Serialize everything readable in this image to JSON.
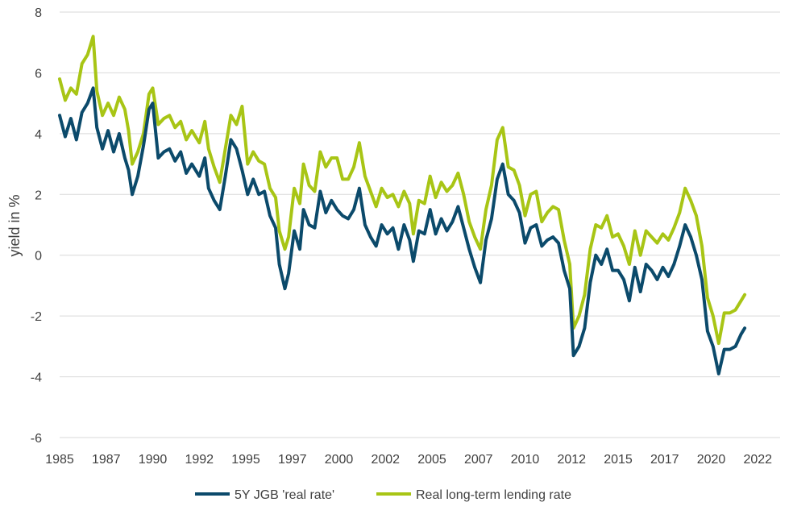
{
  "chart_data": {
    "type": "line",
    "title": "",
    "xlabel": "",
    "ylabel": "yield in %",
    "xlim": [
      1985.0,
      2023.7
    ],
    "ylim": [
      -6,
      8
    ],
    "y_ticks": [
      -6,
      -4,
      -2,
      0,
      2,
      4,
      6,
      8
    ],
    "x_tick_labels": [
      {
        "value": 1985.0,
        "label": "1985"
      },
      {
        "value": 1987.5,
        "label": "1987"
      },
      {
        "value": 1990.0,
        "label": "1990"
      },
      {
        "value": 1992.5,
        "label": "1992"
      },
      {
        "value": 1995.0,
        "label": "1995"
      },
      {
        "value": 1997.5,
        "label": "1997"
      },
      {
        "value": 2000.0,
        "label": "2000"
      },
      {
        "value": 2002.5,
        "label": "2002"
      },
      {
        "value": 2005.0,
        "label": "2005"
      },
      {
        "value": 2007.5,
        "label": "2007"
      },
      {
        "value": 2010.0,
        "label": "2010"
      },
      {
        "value": 2012.5,
        "label": "2012"
      },
      {
        "value": 2015.0,
        "label": "2015"
      },
      {
        "value": 2017.5,
        "label": "2017"
      },
      {
        "value": 2020.0,
        "label": "2020"
      },
      {
        "value": 2022.5,
        "label": "2022"
      }
    ],
    "grid": "horizontal",
    "legend_position": "bottom",
    "series": [
      {
        "name": "5Y JGB 'real rate'",
        "color": "#0b4a6b",
        "points": [
          [
            1985.0,
            4.6
          ],
          [
            1985.3,
            3.9
          ],
          [
            1985.6,
            4.5
          ],
          [
            1985.9,
            3.8
          ],
          [
            1986.2,
            4.7
          ],
          [
            1986.5,
            5.0
          ],
          [
            1986.8,
            5.5
          ],
          [
            1987.0,
            4.2
          ],
          [
            1987.3,
            3.5
          ],
          [
            1987.6,
            4.1
          ],
          [
            1987.9,
            3.4
          ],
          [
            1988.2,
            4.0
          ],
          [
            1988.5,
            3.2
          ],
          [
            1988.7,
            2.8
          ],
          [
            1988.9,
            2.0
          ],
          [
            1989.2,
            2.6
          ],
          [
            1989.5,
            3.6
          ],
          [
            1989.8,
            4.8
          ],
          [
            1990.0,
            5.0
          ],
          [
            1990.3,
            3.2
          ],
          [
            1990.6,
            3.4
          ],
          [
            1990.9,
            3.5
          ],
          [
            1991.2,
            3.1
          ],
          [
            1991.5,
            3.4
          ],
          [
            1991.8,
            2.7
          ],
          [
            1992.1,
            3.0
          ],
          [
            1992.5,
            2.6
          ],
          [
            1992.8,
            3.2
          ],
          [
            1993.0,
            2.2
          ],
          [
            1993.3,
            1.8
          ],
          [
            1993.6,
            1.5
          ],
          [
            1993.9,
            2.6
          ],
          [
            1994.2,
            3.8
          ],
          [
            1994.5,
            3.5
          ],
          [
            1994.8,
            2.8
          ],
          [
            1995.1,
            2.0
          ],
          [
            1995.4,
            2.5
          ],
          [
            1995.7,
            2.0
          ],
          [
            1996.0,
            2.1
          ],
          [
            1996.3,
            1.3
          ],
          [
            1996.6,
            0.9
          ],
          [
            1996.8,
            -0.3
          ],
          [
            1997.1,
            -1.1
          ],
          [
            1997.3,
            -0.6
          ],
          [
            1997.6,
            0.8
          ],
          [
            1997.9,
            0.2
          ],
          [
            1998.1,
            1.5
          ],
          [
            1998.4,
            1.0
          ],
          [
            1998.7,
            0.9
          ],
          [
            1999.0,
            2.1
          ],
          [
            1999.3,
            1.4
          ],
          [
            1999.6,
            1.8
          ],
          [
            1999.9,
            1.5
          ],
          [
            2000.2,
            1.3
          ],
          [
            2000.5,
            1.2
          ],
          [
            2000.8,
            1.5
          ],
          [
            2001.1,
            2.2
          ],
          [
            2001.4,
            1.0
          ],
          [
            2001.7,
            0.6
          ],
          [
            2002.0,
            0.3
          ],
          [
            2002.3,
            1.0
          ],
          [
            2002.6,
            0.7
          ],
          [
            2002.9,
            0.9
          ],
          [
            2003.2,
            0.2
          ],
          [
            2003.5,
            1.0
          ],
          [
            2003.8,
            0.5
          ],
          [
            2004.0,
            -0.2
          ],
          [
            2004.3,
            0.8
          ],
          [
            2004.6,
            0.7
          ],
          [
            2004.9,
            1.5
          ],
          [
            2005.2,
            0.7
          ],
          [
            2005.5,
            1.2
          ],
          [
            2005.8,
            0.8
          ],
          [
            2006.1,
            1.1
          ],
          [
            2006.4,
            1.6
          ],
          [
            2006.7,
            0.9
          ],
          [
            2007.0,
            0.2
          ],
          [
            2007.3,
            -0.4
          ],
          [
            2007.6,
            -0.9
          ],
          [
            2007.9,
            0.5
          ],
          [
            2008.2,
            1.2
          ],
          [
            2008.5,
            2.5
          ],
          [
            2008.8,
            3.0
          ],
          [
            2009.1,
            2.0
          ],
          [
            2009.4,
            1.8
          ],
          [
            2009.7,
            1.4
          ],
          [
            2010.0,
            0.4
          ],
          [
            2010.3,
            0.9
          ],
          [
            2010.6,
            1.0
          ],
          [
            2010.9,
            0.3
          ],
          [
            2011.2,
            0.5
          ],
          [
            2011.5,
            0.6
          ],
          [
            2011.8,
            0.4
          ],
          [
            2012.1,
            -0.5
          ],
          [
            2012.4,
            -1.1
          ],
          [
            2012.6,
            -3.3
          ],
          [
            2012.9,
            -3.0
          ],
          [
            2013.2,
            -2.4
          ],
          [
            2013.5,
            -0.9
          ],
          [
            2013.8,
            0.0
          ],
          [
            2014.1,
            -0.3
          ],
          [
            2014.4,
            0.2
          ],
          [
            2014.7,
            -0.5
          ],
          [
            2015.0,
            -0.5
          ],
          [
            2015.3,
            -0.8
          ],
          [
            2015.6,
            -1.5
          ],
          [
            2015.9,
            -0.4
          ],
          [
            2016.2,
            -1.2
          ],
          [
            2016.5,
            -0.3
          ],
          [
            2016.8,
            -0.5
          ],
          [
            2017.1,
            -0.8
          ],
          [
            2017.4,
            -0.4
          ],
          [
            2017.7,
            -0.7
          ],
          [
            2018.0,
            -0.3
          ],
          [
            2018.3,
            0.3
          ],
          [
            2018.6,
            1.0
          ],
          [
            2018.9,
            0.6
          ],
          [
            2019.2,
            0.0
          ],
          [
            2019.5,
            -0.8
          ],
          [
            2019.8,
            -2.5
          ],
          [
            2020.1,
            -3.0
          ],
          [
            2020.4,
            -3.9
          ],
          [
            2020.7,
            -3.1
          ],
          [
            2021.0,
            -3.1
          ],
          [
            2021.3,
            -3.0
          ],
          [
            2021.6,
            -2.6
          ],
          [
            2021.8,
            -2.4
          ]
        ]
      },
      {
        "name": "Real long-term lending rate",
        "color": "#a8c515",
        "points": [
          [
            1985.0,
            5.8
          ],
          [
            1985.3,
            5.1
          ],
          [
            1985.6,
            5.5
          ],
          [
            1985.9,
            5.3
          ],
          [
            1986.2,
            6.3
          ],
          [
            1986.5,
            6.6
          ],
          [
            1986.8,
            7.2
          ],
          [
            1987.0,
            5.4
          ],
          [
            1987.3,
            4.6
          ],
          [
            1987.6,
            5.0
          ],
          [
            1987.9,
            4.6
          ],
          [
            1988.2,
            5.2
          ],
          [
            1988.5,
            4.8
          ],
          [
            1988.7,
            4.1
          ],
          [
            1988.9,
            3.0
          ],
          [
            1989.2,
            3.4
          ],
          [
            1989.5,
            4.0
          ],
          [
            1989.8,
            5.3
          ],
          [
            1990.0,
            5.5
          ],
          [
            1990.3,
            4.3
          ],
          [
            1990.6,
            4.5
          ],
          [
            1990.9,
            4.6
          ],
          [
            1991.2,
            4.2
          ],
          [
            1991.5,
            4.4
          ],
          [
            1991.8,
            3.8
          ],
          [
            1992.1,
            4.1
          ],
          [
            1992.5,
            3.7
          ],
          [
            1992.8,
            4.4
          ],
          [
            1993.0,
            3.5
          ],
          [
            1993.3,
            2.9
          ],
          [
            1993.6,
            2.4
          ],
          [
            1993.9,
            3.5
          ],
          [
            1994.2,
            4.6
          ],
          [
            1994.5,
            4.3
          ],
          [
            1994.8,
            4.9
          ],
          [
            1995.1,
            3.0
          ],
          [
            1995.4,
            3.4
          ],
          [
            1995.7,
            3.1
          ],
          [
            1996.0,
            3.0
          ],
          [
            1996.3,
            2.2
          ],
          [
            1996.6,
            1.9
          ],
          [
            1996.8,
            0.8
          ],
          [
            1997.1,
            0.2
          ],
          [
            1997.3,
            0.6
          ],
          [
            1997.6,
            2.2
          ],
          [
            1997.9,
            1.7
          ],
          [
            1998.1,
            3.0
          ],
          [
            1998.4,
            2.3
          ],
          [
            1998.7,
            2.1
          ],
          [
            1999.0,
            3.4
          ],
          [
            1999.3,
            2.9
          ],
          [
            1999.6,
            3.2
          ],
          [
            1999.9,
            3.2
          ],
          [
            2000.2,
            2.5
          ],
          [
            2000.5,
            2.5
          ],
          [
            2000.8,
            2.9
          ],
          [
            2001.1,
            3.7
          ],
          [
            2001.4,
            2.6
          ],
          [
            2001.7,
            2.1
          ],
          [
            2002.0,
            1.6
          ],
          [
            2002.3,
            2.2
          ],
          [
            2002.6,
            1.9
          ],
          [
            2002.9,
            2.0
          ],
          [
            2003.2,
            1.6
          ],
          [
            2003.5,
            2.1
          ],
          [
            2003.8,
            1.7
          ],
          [
            2004.0,
            0.7
          ],
          [
            2004.3,
            1.8
          ],
          [
            2004.6,
            1.7
          ],
          [
            2004.9,
            2.6
          ],
          [
            2005.2,
            1.9
          ],
          [
            2005.5,
            2.4
          ],
          [
            2005.8,
            2.1
          ],
          [
            2006.1,
            2.3
          ],
          [
            2006.4,
            2.7
          ],
          [
            2006.7,
            2.0
          ],
          [
            2007.0,
            1.1
          ],
          [
            2007.3,
            0.6
          ],
          [
            2007.6,
            0.2
          ],
          [
            2007.9,
            1.5
          ],
          [
            2008.2,
            2.3
          ],
          [
            2008.5,
            3.8
          ],
          [
            2008.8,
            4.2
          ],
          [
            2009.1,
            2.9
          ],
          [
            2009.4,
            2.8
          ],
          [
            2009.7,
            2.3
          ],
          [
            2010.0,
            1.3
          ],
          [
            2010.3,
            2.0
          ],
          [
            2010.6,
            2.1
          ],
          [
            2010.9,
            1.1
          ],
          [
            2011.2,
            1.4
          ],
          [
            2011.5,
            1.6
          ],
          [
            2011.8,
            1.5
          ],
          [
            2012.1,
            0.5
          ],
          [
            2012.4,
            -0.3
          ],
          [
            2012.6,
            -2.4
          ],
          [
            2012.9,
            -2.0
          ],
          [
            2013.2,
            -1.3
          ],
          [
            2013.5,
            0.2
          ],
          [
            2013.8,
            1.0
          ],
          [
            2014.1,
            0.9
          ],
          [
            2014.4,
            1.3
          ],
          [
            2014.7,
            0.6
          ],
          [
            2015.0,
            0.7
          ],
          [
            2015.3,
            0.3
          ],
          [
            2015.6,
            -0.3
          ],
          [
            2015.9,
            0.8
          ],
          [
            2016.2,
            0.0
          ],
          [
            2016.5,
            0.8
          ],
          [
            2016.8,
            0.6
          ],
          [
            2017.1,
            0.4
          ],
          [
            2017.4,
            0.7
          ],
          [
            2017.7,
            0.5
          ],
          [
            2018.0,
            0.9
          ],
          [
            2018.3,
            1.4
          ],
          [
            2018.6,
            2.2
          ],
          [
            2018.9,
            1.8
          ],
          [
            2019.2,
            1.3
          ],
          [
            2019.5,
            0.3
          ],
          [
            2019.8,
            -1.4
          ],
          [
            2020.1,
            -2.0
          ],
          [
            2020.4,
            -2.9
          ],
          [
            2020.7,
            -1.9
          ],
          [
            2021.0,
            -1.9
          ],
          [
            2021.3,
            -1.8
          ],
          [
            2021.6,
            -1.5
          ],
          [
            2021.8,
            -1.3
          ]
        ]
      }
    ]
  }
}
